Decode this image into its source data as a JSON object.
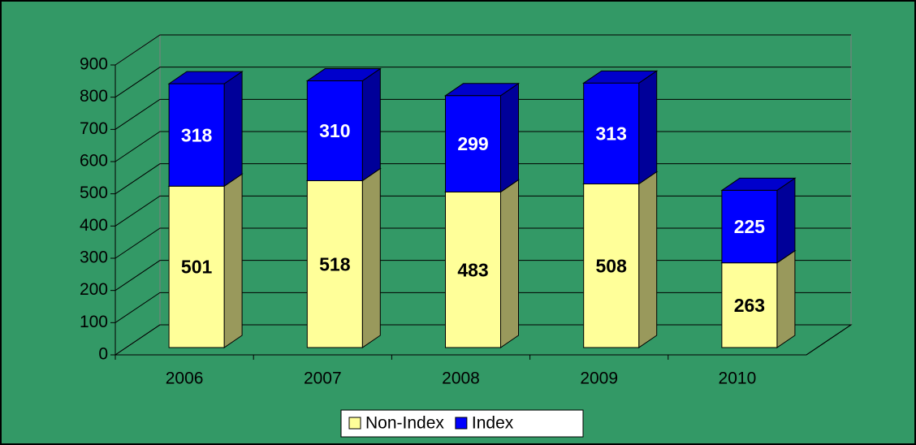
{
  "chart_data": {
    "type": "bar3d_stacked",
    "categories": [
      "2006",
      "2007",
      "2008",
      "2009",
      "2010"
    ],
    "series": [
      {
        "name": "Non-Index",
        "color": "#ffff99",
        "values": [
          501,
          518,
          483,
          508,
          263
        ]
      },
      {
        "name": "Index",
        "color": "#0000ff",
        "values": [
          318,
          310,
          299,
          313,
          225
        ]
      }
    ],
    "ylim": [
      0,
      900
    ],
    "yticks": [
      0,
      100,
      200,
      300,
      400,
      500,
      600,
      700,
      800,
      900
    ],
    "grid": true,
    "legend": "bottom"
  }
}
